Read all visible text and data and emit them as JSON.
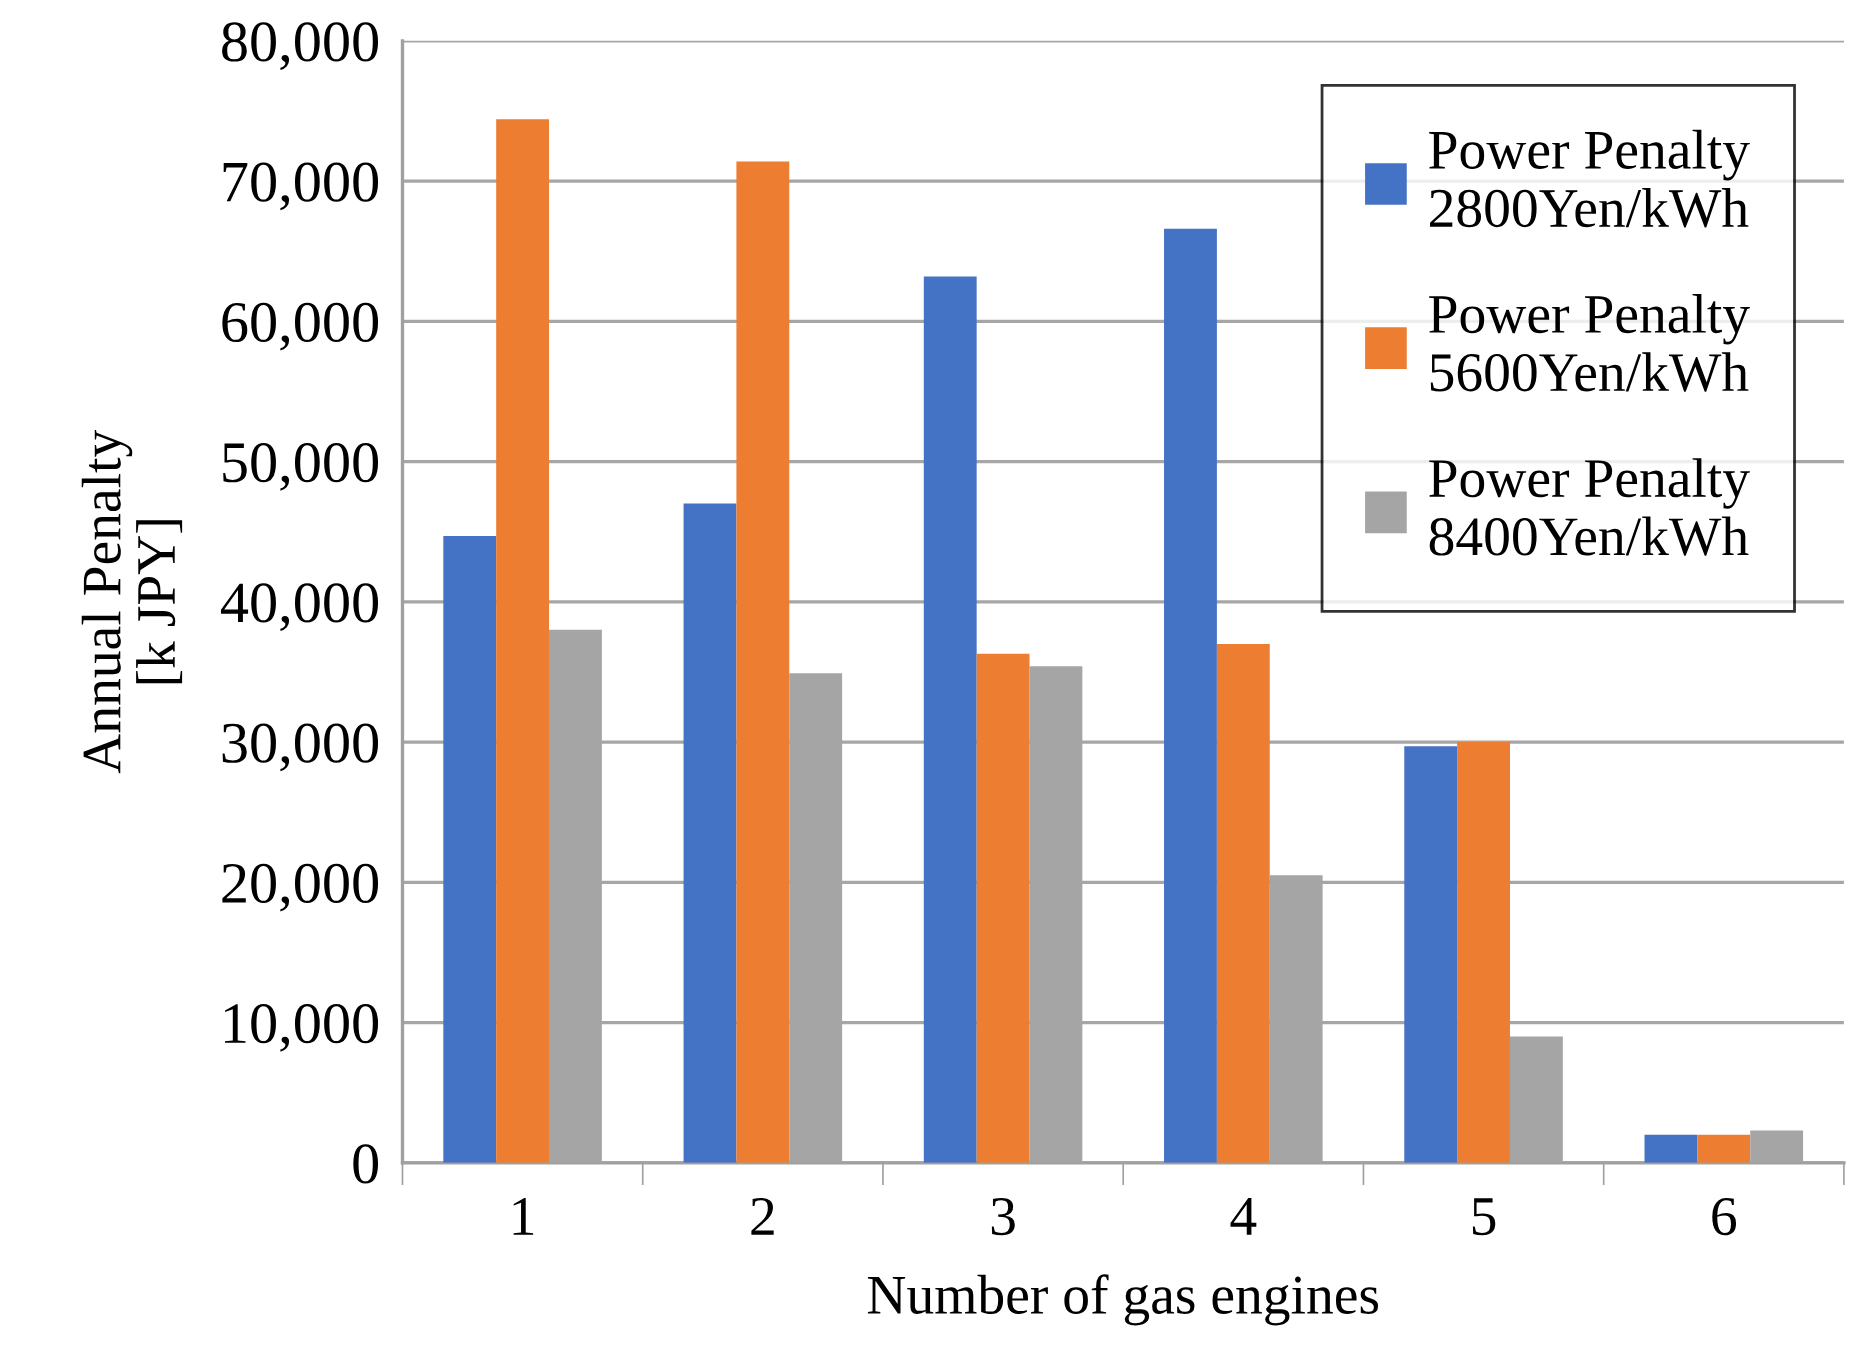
{
  "chart_data": {
    "type": "bar",
    "xlabel": "Number of gas engines",
    "ylabel": "Annual Penalty\n[k JPY]",
    "categories": [
      "1",
      "2",
      "3",
      "4",
      "5",
      "6"
    ],
    "series": [
      {
        "name": "Power Penalty\n2800Yen/kWh",
        "color": "#4472c4",
        "values": [
          44700,
          47000,
          63200,
          66600,
          29700,
          2000
        ]
      },
      {
        "name": "Power Penalty\n5600Yen/kWh",
        "color": "#ed7d31",
        "values": [
          74400,
          71400,
          36300,
          37000,
          30000,
          2000
        ]
      },
      {
        "name": "Power Penalty\n8400Yen/kWh",
        "color": "#a5a5a5",
        "values": [
          38000,
          34900,
          35400,
          20500,
          9000,
          2300
        ]
      }
    ],
    "ylim": [
      0,
      80000
    ],
    "yticks": [
      {
        "value": 0,
        "label": "0"
      },
      {
        "value": 10000,
        "label": "10,000"
      },
      {
        "value": 20000,
        "label": "20,000"
      },
      {
        "value": 30000,
        "label": "30,000"
      },
      {
        "value": 40000,
        "label": "40,000"
      },
      {
        "value": 50000,
        "label": "50,000"
      },
      {
        "value": 60000,
        "label": "60,000"
      },
      {
        "value": 70000,
        "label": "70,000"
      },
      {
        "value": 80000,
        "label": "80,000"
      }
    ],
    "grid": "y",
    "legend": "top right"
  }
}
